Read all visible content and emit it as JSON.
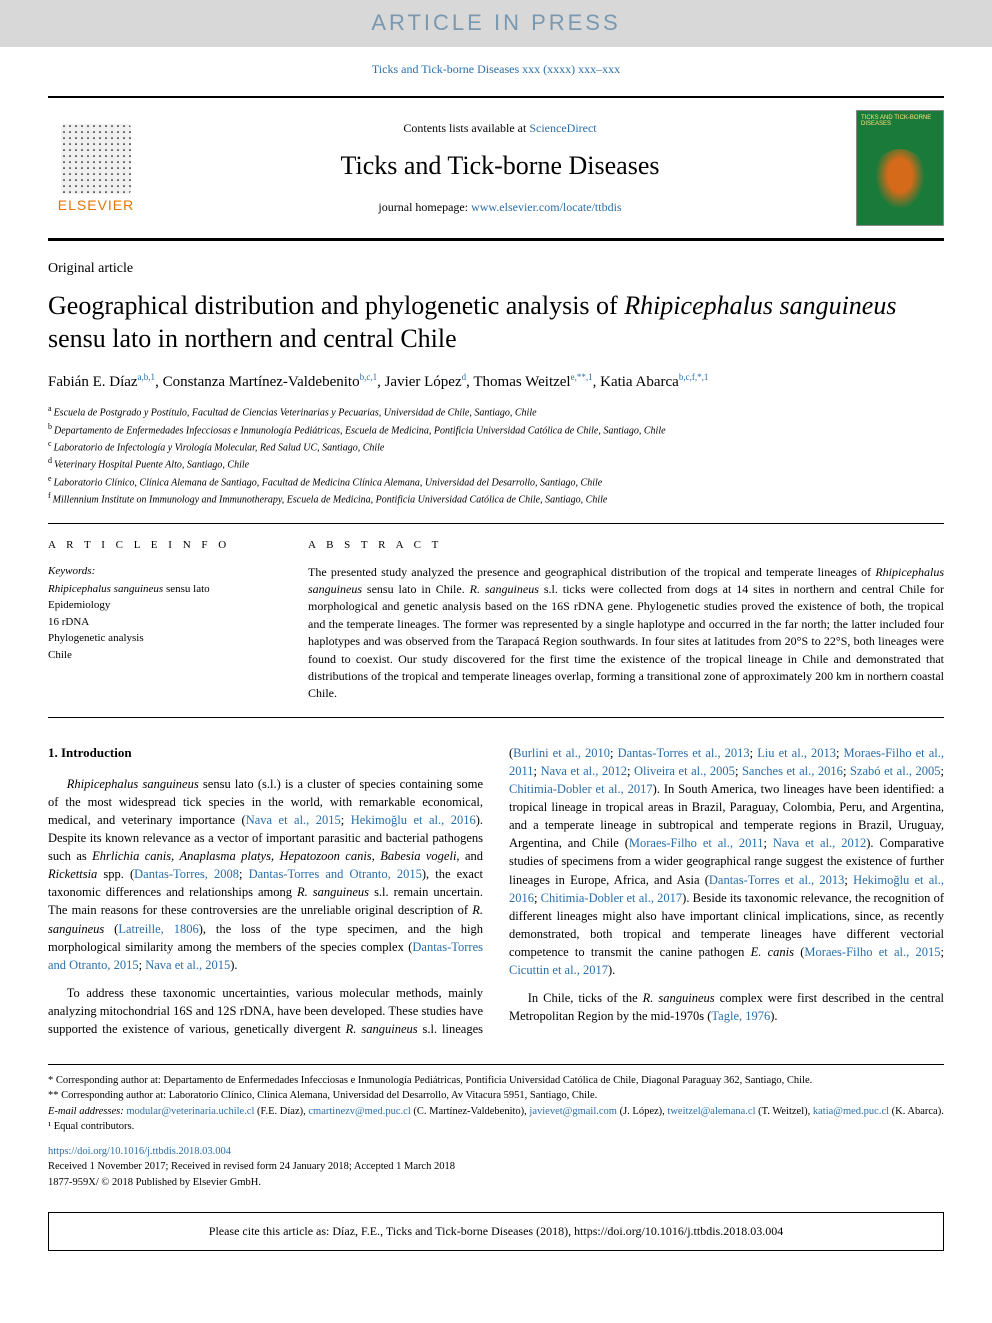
{
  "banner": {
    "text": "ARTICLE IN PRESS"
  },
  "citation_header": "Ticks and Tick-borne Diseases xxx (xxxx) xxx–xxx",
  "header": {
    "contents_prefix": "Contents lists available at ",
    "contents_link": "ScienceDirect",
    "journal_name": "Ticks and Tick-borne Diseases",
    "homepage_prefix": "journal homepage: ",
    "homepage_link": "www.elsevier.com/locate/ttbdis",
    "elsevier_label": "ELSEVIER",
    "cover_title": "TICKS AND TICK-BORNE DISEASES"
  },
  "article_type": "Original article",
  "title_parts": {
    "p1": "Geographical distribution and phylogenetic analysis of ",
    "italic1": "Rhipicephalus sanguineus",
    "p2": " sensu lato in northern and central Chile"
  },
  "authors": [
    {
      "name": "Fabián E. Díaz",
      "sup": "a,b,1"
    },
    {
      "name": "Constanza Martínez-Valdebenito",
      "sup": "b,c,1"
    },
    {
      "name": "Javier López",
      "sup": "d"
    },
    {
      "name": "Thomas Weitzel",
      "sup": "e,**,1"
    },
    {
      "name": "Katia Abarca",
      "sup": "b,c,f,*,1"
    }
  ],
  "affiliations": [
    {
      "sup": "a",
      "text": "Escuela de Postgrado y Postítulo, Facultad de Ciencias Veterinarias y Pecuarias, Universidad de Chile, Santiago, Chile"
    },
    {
      "sup": "b",
      "text": "Departamento de Enfermedades Infecciosas e Inmunología Pediátricas, Escuela de Medicina, Pontificia Universidad Católica de Chile, Santiago, Chile"
    },
    {
      "sup": "c",
      "text": "Laboratorio de Infectología y Virología Molecular, Red Salud UC, Santiago, Chile"
    },
    {
      "sup": "d",
      "text": "Veterinary Hospital Puente Alto, Santiago, Chile"
    },
    {
      "sup": "e",
      "text": "Laboratorio Clínico, Clínica Alemana de Santiago, Facultad de Medicina Clínica Alemana, Universidad del Desarrollo, Santiago, Chile"
    },
    {
      "sup": "f",
      "text": "Millennium Institute on Immunology and Immunotherapy, Escuela de Medicina, Pontificia Universidad Católica de Chile, Santiago, Chile"
    }
  ],
  "info": {
    "label": "A R T I C L E  I N F O",
    "kw_head": "Keywords:",
    "keywords": [
      "Rhipicephalus sanguineus sensu lato",
      "Epidemiology",
      "16 rDNA",
      "Phylogenetic analysis",
      "Chile"
    ]
  },
  "abstract": {
    "label": "A B S T R A C T",
    "text_parts": [
      {
        "t": "The presented study analyzed the presence and geographical distribution of the tropical and temperate lineages of "
      },
      {
        "t": "Rhipicephalus sanguineus",
        "italic": true
      },
      {
        "t": " sensu lato in Chile. "
      },
      {
        "t": "R. sanguineus",
        "italic": true
      },
      {
        "t": " s.l. ticks were collected from dogs at 14 sites in northern and central Chile for morphological and genetic analysis based on the 16S rDNA gene. Phylogenetic studies proved the existence of both, the tropical and the temperate lineages. The former was represented by a single haplotype and occurred in the far north; the latter included four haplotypes and was observed from the Tarapacá Region southwards. In four sites at latitudes from 20°S to 22°S, both lineages were found to coexist. Our study discovered for the first time the existence of the tropical lineage in Chile and demonstrated that distributions of the tropical and temperate lineages overlap, forming a transitional zone of approximately 200 km in northern coastal Chile."
      }
    ]
  },
  "body": {
    "heading": "1. Introduction",
    "p1": {
      "segs": [
        {
          "t": "Rhipicephalus sanguineus",
          "italic": true
        },
        {
          "t": " sensu lato (s.l.) is a cluster of species containing some of the most widespread tick species in the world, with remarkable economical, medical, and veterinary importance ("
        },
        {
          "t": "Nava et al., 2015",
          "link": true
        },
        {
          "t": "; "
        },
        {
          "t": "Hekimoğlu et al., 2016",
          "link": true
        },
        {
          "t": "). Despite its known relevance as a vector of important parasitic and bacterial pathogens such as "
        },
        {
          "t": "Ehrlichia canis, Anaplasma platys, Hepatozoon canis, Babesia vogeli,",
          "italic": true
        },
        {
          "t": " and "
        },
        {
          "t": "Rickettsia",
          "italic": true
        },
        {
          "t": " spp. ("
        },
        {
          "t": "Dantas-Torres, 2008",
          "link": true
        },
        {
          "t": "; "
        },
        {
          "t": "Dantas-Torres and Otranto, 2015",
          "link": true
        },
        {
          "t": "), the exact taxonomic differences and relationships among "
        },
        {
          "t": "R. sanguineus",
          "italic": true
        },
        {
          "t": " s.l. remain uncertain. The main reasons for these controversies are the unreliable original description of "
        },
        {
          "t": "R. sanguineus",
          "italic": true
        },
        {
          "t": " ("
        },
        {
          "t": "Latreille, 1806",
          "link": true
        },
        {
          "t": "), the loss of the type specimen, and the high morphological similarity among the members of the species complex ("
        },
        {
          "t": "Dantas-Torres and Otranto, 2015",
          "link": true
        },
        {
          "t": "; "
        },
        {
          "t": "Nava et al., 2015",
          "link": true
        },
        {
          "t": ")."
        }
      ]
    },
    "p2": {
      "segs": [
        {
          "t": "To address these taxonomic uncertainties, various molecular methods, mainly analyzing mitochondrial 16S and 12S rDNA, have been developed. These studies have supported the existence of various, genetically divergent "
        },
        {
          "t": "R. sanguineus",
          "italic": true
        },
        {
          "t": " s.l. lineages ("
        },
        {
          "t": "Burlini et al., 2010",
          "link": true
        },
        {
          "t": "; "
        },
        {
          "t": "Dantas-Torres et al., 2013",
          "link": true
        },
        {
          "t": "; "
        },
        {
          "t": "Liu et al., 2013",
          "link": true
        },
        {
          "t": "; "
        },
        {
          "t": "Moraes-Filho et al., 2011",
          "link": true
        },
        {
          "t": "; "
        },
        {
          "t": "Nava et al., 2012",
          "link": true
        },
        {
          "t": "; "
        },
        {
          "t": "Oliveira et al., 2005",
          "link": true
        },
        {
          "t": "; "
        },
        {
          "t": "Sanches et al., 2016",
          "link": true
        },
        {
          "t": "; "
        },
        {
          "t": "Szabó et al., 2005",
          "link": true
        },
        {
          "t": "; "
        },
        {
          "t": "Chitimia-Dobler et al., 2017",
          "link": true
        },
        {
          "t": "). In South America, two lineages have been identified: a tropical lineage in tropical areas in Brazil, Paraguay, Colombia, Peru, and Argentina, and a temperate lineage in subtropical and temperate regions in Brazil, Uruguay, Argentina, and Chile ("
        },
        {
          "t": "Moraes-Filho et al., 2011",
          "link": true
        },
        {
          "t": "; "
        },
        {
          "t": "Nava et al., 2012",
          "link": true
        },
        {
          "t": "). Comparative studies of specimens from a wider geographical range suggest the existence of further lineages in Europe, Africa, and Asia ("
        },
        {
          "t": "Dantas-Torres et al., 2013",
          "link": true
        },
        {
          "t": "; "
        },
        {
          "t": "Hekimoğlu et al., 2016",
          "link": true
        },
        {
          "t": "; "
        },
        {
          "t": "Chitimia-Dobler et al., 2017",
          "link": true
        },
        {
          "t": "). Beside its taxonomic relevance, the recognition of different lineages might also have important clinical implications, since, as recently demonstrated, both tropical and temperate lineages have different vectorial competence to transmit the canine pathogen "
        },
        {
          "t": "E. canis",
          "italic": true
        },
        {
          "t": " ("
        },
        {
          "t": "Moraes-Filho et al., 2015",
          "link": true
        },
        {
          "t": "; "
        },
        {
          "t": "Cicuttin et al., 2017",
          "link": true
        },
        {
          "t": ")."
        }
      ]
    },
    "p3": {
      "segs": [
        {
          "t": "In Chile, ticks of the "
        },
        {
          "t": "R. sanguineus",
          "italic": true
        },
        {
          "t": " complex were first described in the central Metropolitan Region by the mid-1970s ("
        },
        {
          "t": "Tagle, 1976",
          "link": true
        },
        {
          "t": ")."
        }
      ]
    }
  },
  "footnotes": {
    "star1": "* Corresponding author at: Departamento de Enfermedades Infecciosas e Inmunología Pediátricas, Pontificia Universidad Católica de Chile, Diagonal Paraguay 362, Santiago, Chile.",
    "star2": "** Corresponding author at: Laboratorio Clínico, Clínica Alemana, Universidad del Desarrollo, Av Vitacura 5951, Santiago, Chile.",
    "email_label": "E-mail addresses: ",
    "emails": [
      {
        "addr": "modular@veterinaria.uchile.cl",
        "who": " (F.E. Díaz), "
      },
      {
        "addr": "cmartinezv@med.puc.cl",
        "who": " (C. Martínez-Valdebenito), "
      },
      {
        "addr": "javievet@gmail.com",
        "who": " (J. López), "
      },
      {
        "addr": "tweitzel@alemana.cl",
        "who": " (T. Weitzel), "
      },
      {
        "addr": "katia@med.puc.cl",
        "who": " (K. Abarca)."
      }
    ],
    "equal": "¹ Equal contributors."
  },
  "doi": {
    "link": "https://doi.org/10.1016/j.ttbdis.2018.03.004",
    "received": "Received 1 November 2017; Received in revised form 24 January 2018; Accepted 1 March 2018",
    "issn": "1877-959X/ © 2018 Published by Elsevier GmbH."
  },
  "cite_box": "Please cite this article as: Díaz, F.E., Ticks and Tick-borne Diseases (2018), https://doi.org/10.1016/j.ttbdis.2018.03.004",
  "colors": {
    "link": "#2a6ea9",
    "banner_bg": "#d8d8d8",
    "banner_fg": "#7a99b0",
    "elsevier_orange": "#e67400",
    "cover_green": "#1a7a3a"
  }
}
